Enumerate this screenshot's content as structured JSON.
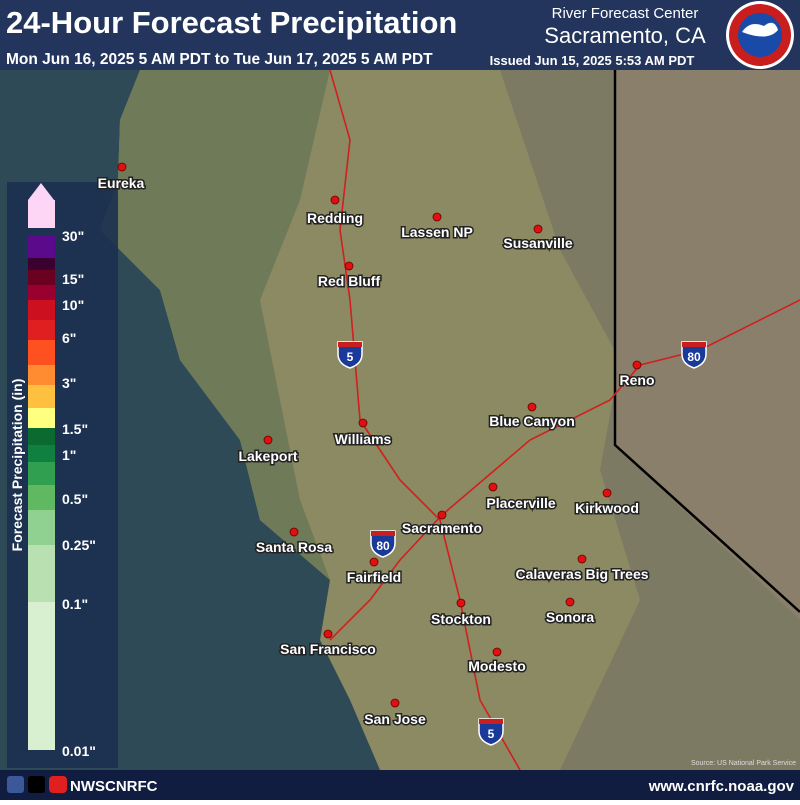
{
  "header": {
    "title": "24-Hour Forecast Precipitation",
    "subtitle": "Mon Jun 16, 2025 5 AM PDT to Tue Jun 17, 2025 5 AM PDT",
    "center_line1": "River Forecast Center",
    "center_line2": "Sacramento, CA",
    "issued": "Issued Jun 15, 2025 5:53 AM PDT"
  },
  "legend": {
    "label": "Forecast Precipitation (in)",
    "ticks": [
      "30\"",
      "15\"",
      "10\"",
      "6\"",
      "3\"",
      "1.5\"",
      "1\"",
      "0.5\"",
      "0.25\"",
      "0.1\"",
      "0.01\""
    ],
    "colors": [
      "#fdd5f5",
      "#5a0a8a",
      "#3a0030",
      "#6b0020",
      "#990030",
      "#cc1020",
      "#e02020",
      "#ff5020",
      "#ff8c30",
      "#ffc040",
      "#ffff80",
      "#0a6a30",
      "#108040",
      "#30a050",
      "#60b860",
      "#90d090",
      "#b8e0b0",
      "#d8f0d0"
    ]
  },
  "cities": [
    "Eureka",
    "Redding",
    "Lassen NP",
    "Susanville",
    "Red Bluff",
    "Reno",
    "Blue Canyon",
    "Williams",
    "Lakeport",
    "Placerville",
    "Kirkwood",
    "Sacramento",
    "Santa Rosa",
    "Fairfield",
    "Calaveras Big Trees",
    "Sonora",
    "Stockton",
    "San Francisco",
    "Modesto",
    "San Jose"
  ],
  "highways": [
    "5",
    "80",
    "80",
    "5"
  ],
  "source": "Source: US National Park Service",
  "footer": {
    "handle": "NWSCNRFC",
    "url": "www.cnrfc.noaa.gov"
  }
}
